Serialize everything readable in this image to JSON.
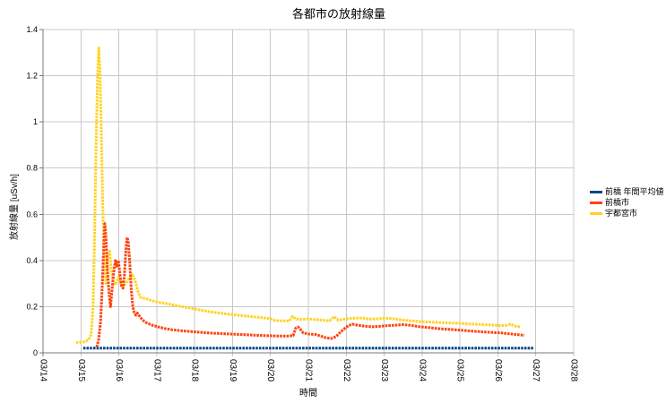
{
  "chart_data": {
    "type": "line",
    "title": "各都市の放射線量",
    "xlabel": "時間",
    "ylabel": "放射線量  [uSv/h]",
    "x_unit": "days (t=0 is 03/14, one gridline per day)",
    "x_tick_labels": [
      "03/14",
      "03/15",
      "03/16",
      "03/17",
      "03/18",
      "03/19",
      "03/20",
      "03/21",
      "03/22",
      "03/23",
      "03/24",
      "03/25",
      "03/26",
      "03/27",
      "03/28"
    ],
    "x_range": [
      0,
      14
    ],
    "y_range": [
      0,
      1.4
    ],
    "y_ticks": [
      0,
      0.2,
      0.4,
      0.6,
      0.8,
      1,
      1.2,
      1.4
    ],
    "y_tick_labels": [
      "0",
      "0.2",
      "0.4",
      "0.6",
      "0.8",
      "1",
      "1.2",
      "1.4"
    ],
    "grid": true,
    "legend_position": "right",
    "grid_color": "#c8c8c8",
    "axis_color": "#787878",
    "series": [
      {
        "name": "前橋 年間平均値",
        "color": "#004586",
        "points": [
          [
            1.06,
            0.02
          ],
          [
            12.96,
            0.02
          ]
        ]
      },
      {
        "name": "前橋市",
        "color": "#FF420E",
        "points": [
          [
            1.42,
            0.025
          ],
          [
            1.47,
            0.06
          ],
          [
            1.52,
            0.14
          ],
          [
            1.57,
            0.32
          ],
          [
            1.61,
            0.5
          ],
          [
            1.63,
            0.56
          ],
          [
            1.66,
            0.5
          ],
          [
            1.7,
            0.36
          ],
          [
            1.74,
            0.26
          ],
          [
            1.78,
            0.2
          ],
          [
            1.83,
            0.29
          ],
          [
            1.88,
            0.37
          ],
          [
            1.91,
            0.4
          ],
          [
            1.95,
            0.37
          ],
          [
            1.99,
            0.4
          ],
          [
            2.03,
            0.34
          ],
          [
            2.07,
            0.29
          ],
          [
            2.11,
            0.28
          ],
          [
            2.15,
            0.34
          ],
          [
            2.19,
            0.46
          ],
          [
            2.22,
            0.5
          ],
          [
            2.25,
            0.48
          ],
          [
            2.29,
            0.39
          ],
          [
            2.33,
            0.27
          ],
          [
            2.37,
            0.2
          ],
          [
            2.41,
            0.17
          ],
          [
            2.45,
            0.163
          ],
          [
            2.49,
            0.172
          ],
          [
            2.54,
            0.16
          ],
          [
            2.62,
            0.143
          ],
          [
            2.72,
            0.131
          ],
          [
            2.86,
            0.121
          ],
          [
            3.0,
            0.114
          ],
          [
            3.2,
            0.106
          ],
          [
            3.4,
            0.1
          ],
          [
            3.7,
            0.095
          ],
          [
            4.0,
            0.091
          ],
          [
            4.3,
            0.087
          ],
          [
            4.6,
            0.084
          ],
          [
            5.0,
            0.081
          ],
          [
            5.4,
            0.078
          ],
          [
            5.8,
            0.075
          ],
          [
            6.2,
            0.073
          ],
          [
            6.5,
            0.073
          ],
          [
            6.6,
            0.075
          ],
          [
            6.67,
            0.108
          ],
          [
            6.73,
            0.112
          ],
          [
            6.79,
            0.102
          ],
          [
            6.86,
            0.087
          ],
          [
            7.0,
            0.082
          ],
          [
            7.2,
            0.079
          ],
          [
            7.36,
            0.071
          ],
          [
            7.46,
            0.065
          ],
          [
            7.6,
            0.062
          ],
          [
            7.73,
            0.07
          ],
          [
            7.86,
            0.092
          ],
          [
            7.96,
            0.106
          ],
          [
            8.06,
            0.118
          ],
          [
            8.16,
            0.124
          ],
          [
            8.3,
            0.12
          ],
          [
            8.5,
            0.115
          ],
          [
            8.7,
            0.113
          ],
          [
            8.9,
            0.115
          ],
          [
            9.1,
            0.118
          ],
          [
            9.3,
            0.12
          ],
          [
            9.5,
            0.122
          ],
          [
            9.7,
            0.119
          ],
          [
            9.9,
            0.114
          ],
          [
            10.2,
            0.109
          ],
          [
            10.5,
            0.104
          ],
          [
            10.8,
            0.101
          ],
          [
            11.1,
            0.097
          ],
          [
            11.4,
            0.093
          ],
          [
            11.8,
            0.089
          ],
          [
            12.1,
            0.086
          ],
          [
            12.4,
            0.081
          ],
          [
            12.7,
            0.076
          ]
        ]
      },
      {
        "name": "宇都宮市",
        "color": "#FFD320",
        "points": [
          [
            0.87,
            0.045
          ],
          [
            1.0,
            0.046
          ],
          [
            1.1,
            0.048
          ],
          [
            1.2,
            0.056
          ],
          [
            1.27,
            0.08
          ],
          [
            1.32,
            0.2
          ],
          [
            1.36,
            0.5
          ],
          [
            1.4,
            0.9
          ],
          [
            1.44,
            1.2
          ],
          [
            1.47,
            1.32
          ],
          [
            1.5,
            1.24
          ],
          [
            1.54,
            0.95
          ],
          [
            1.58,
            0.6
          ],
          [
            1.62,
            0.38
          ],
          [
            1.66,
            0.3
          ],
          [
            1.7,
            0.42
          ],
          [
            1.76,
            0.44
          ],
          [
            1.8,
            0.36
          ],
          [
            1.85,
            0.305
          ],
          [
            1.92,
            0.295
          ],
          [
            2.0,
            0.33
          ],
          [
            2.06,
            0.302
          ],
          [
            2.12,
            0.288
          ],
          [
            2.2,
            0.305
          ],
          [
            2.3,
            0.33
          ],
          [
            2.36,
            0.337
          ],
          [
            2.42,
            0.318
          ],
          [
            2.5,
            0.27
          ],
          [
            2.57,
            0.24
          ],
          [
            2.7,
            0.235
          ],
          [
            2.9,
            0.225
          ],
          [
            3.1,
            0.217
          ],
          [
            3.4,
            0.209
          ],
          [
            3.7,
            0.199
          ],
          [
            4.0,
            0.19
          ],
          [
            4.4,
            0.178
          ],
          [
            4.8,
            0.169
          ],
          [
            5.2,
            0.162
          ],
          [
            5.6,
            0.155
          ],
          [
            6.0,
            0.148
          ],
          [
            6.12,
            0.14
          ],
          [
            6.3,
            0.139
          ],
          [
            6.5,
            0.138
          ],
          [
            6.58,
            0.158
          ],
          [
            6.67,
            0.147
          ],
          [
            6.8,
            0.145
          ],
          [
            7.0,
            0.147
          ],
          [
            7.2,
            0.144
          ],
          [
            7.4,
            0.141
          ],
          [
            7.56,
            0.139
          ],
          [
            7.68,
            0.157
          ],
          [
            7.79,
            0.141
          ],
          [
            7.95,
            0.146
          ],
          [
            8.1,
            0.149
          ],
          [
            8.3,
            0.151
          ],
          [
            8.46,
            0.15
          ],
          [
            8.6,
            0.146
          ],
          [
            8.8,
            0.147
          ],
          [
            9.0,
            0.15
          ],
          [
            9.2,
            0.149
          ],
          [
            9.45,
            0.143
          ],
          [
            9.7,
            0.139
          ],
          [
            10.0,
            0.135
          ],
          [
            10.4,
            0.132
          ],
          [
            10.8,
            0.129
          ],
          [
            11.2,
            0.126
          ],
          [
            11.6,
            0.122
          ],
          [
            12.0,
            0.119
          ],
          [
            12.2,
            0.118
          ],
          [
            12.33,
            0.124
          ],
          [
            12.45,
            0.116
          ],
          [
            12.6,
            0.112
          ]
        ]
      }
    ]
  }
}
